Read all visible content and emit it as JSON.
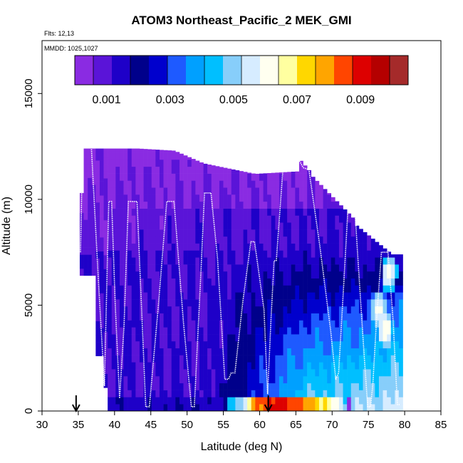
{
  "chart_data": {
    "type": "heatmap",
    "title": "ATOM3 Northeast_Pacific_2 MEK_GMI",
    "flights_label": "Flts: 12,13",
    "dates_label": "MMDD: 1025,1027",
    "xlabel": "Latitude (deg N)",
    "ylabel": "Altitude (m)",
    "xlim": [
      30,
      85
    ],
    "ylim": [
      0,
      17500
    ],
    "xticks": [
      "30",
      "35",
      "40",
      "45",
      "50",
      "55",
      "60",
      "65",
      "70",
      "75",
      "80",
      "85"
    ],
    "yticks": [
      "0",
      "5000",
      "10000",
      "15000"
    ],
    "colorbar": {
      "range": [
        0,
        0.0105
      ],
      "ticks": [
        "0.001",
        "0.003",
        "0.005",
        "0.007",
        "0.009"
      ],
      "tick_values": [
        0.001,
        0.003,
        0.005,
        0.007,
        0.009
      ],
      "colors": [
        "#8a2be2",
        "#5a14d8",
        "#1e00c8",
        "#00008b",
        "#0000cd",
        "#1e5aff",
        "#00a0ff",
        "#00bfff",
        "#87cefa",
        "#d6ecff",
        "#fffff0",
        "#ffffa0",
        "#ffd700",
        "#ffa500",
        "#ff4500",
        "#dd0000",
        "#b40000",
        "#a52a2a"
      ]
    },
    "arrows_at_lat": [
      34.7,
      61.2
    ],
    "flight_track": [
      [
        35.3,
        7500
      ],
      [
        35.6,
        12500
      ],
      [
        36.8,
        12500
      ],
      [
        37.8,
        6000
      ],
      [
        38.6,
        1200
      ],
      [
        39.2,
        9900
      ],
      [
        39.6,
        9900
      ],
      [
        40.1,
        5000
      ],
      [
        40.7,
        600
      ],
      [
        41.3,
        4000
      ],
      [
        41.9,
        9900
      ],
      [
        43.1,
        9900
      ],
      [
        44.3,
        200
      ],
      [
        44.8,
        200
      ],
      [
        46.1,
        5200
      ],
      [
        47.2,
        9900
      ],
      [
        48.2,
        9900
      ],
      [
        49.5,
        4200
      ],
      [
        50.6,
        200
      ],
      [
        51.0,
        200
      ],
      [
        51.9,
        6500
      ],
      [
        52.4,
        10300
      ],
      [
        53.3,
        10300
      ],
      [
        54.2,
        7200
      ],
      [
        55.2,
        1500
      ],
      [
        55.7,
        1500
      ],
      [
        56.1,
        1800
      ],
      [
        56.6,
        1800
      ],
      [
        57.7,
        5200
      ],
      [
        58.8,
        8000
      ],
      [
        59.3,
        8000
      ],
      [
        60.6,
        4800
      ],
      [
        61.1,
        800
      ],
      [
        61.6,
        4500
      ],
      [
        62.0,
        7100
      ],
      [
        62.3,
        7100
      ],
      [
        63.4,
        12300
      ],
      [
        64.9,
        12200
      ],
      [
        66.0,
        11500
      ],
      [
        66.8,
        11400
      ],
      [
        68.3,
        7800
      ],
      [
        69.8,
        3800
      ],
      [
        70.5,
        1500
      ],
      [
        70.9,
        1800
      ],
      [
        71.6,
        6000
      ],
      [
        72.3,
        10300
      ],
      [
        73.0,
        10300
      ],
      [
        73.5,
        7500
      ],
      [
        74.3,
        3200
      ],
      [
        74.9,
        200
      ],
      [
        75.3,
        200
      ],
      [
        75.6,
        1200
      ],
      [
        76.1,
        4200
      ],
      [
        76.8,
        7500
      ],
      [
        77.7,
        7500
      ],
      [
        78.4,
        4300
      ],
      [
        79.0,
        300
      ],
      [
        79.3,
        300
      ]
    ],
    "surface_layer": [
      [
        55.6,
        0.0044
      ],
      [
        57.5,
        0.0049
      ],
      [
        59.5,
        0.0081
      ],
      [
        61.5,
        0.0089
      ],
      [
        64.5,
        0.0087
      ],
      [
        67.0,
        0.0078
      ],
      [
        69.0,
        0.007
      ],
      [
        70.5,
        0.0062
      ],
      [
        72.0,
        0.0045
      ]
    ],
    "mid_level_maxima": [
      [
        76.5,
        4800,
        0.0062
      ],
      [
        77.3,
        3800,
        0.0066
      ],
      [
        77.9,
        6500,
        0.0063
      ]
    ]
  }
}
